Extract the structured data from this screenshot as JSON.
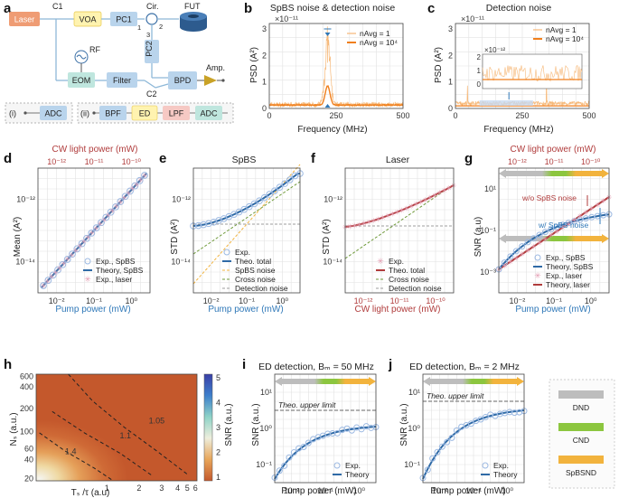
{
  "panels": {
    "a": {
      "label": "a",
      "blocks": [
        "Laser",
        "VOA",
        "PC1",
        "Cir.",
        "FUT",
        "RF",
        "EOM",
        "Filter",
        "PC2",
        "BPD",
        "Amp."
      ],
      "ports": [
        "C1",
        "1",
        "2",
        "3",
        "C2"
      ],
      "inset_i": {
        "label": "(i)",
        "blocks": [
          "ADC"
        ]
      },
      "inset_ii": {
        "label": "(ii)",
        "blocks": [
          "BPF",
          "ED",
          "LPF",
          "ADC"
        ]
      }
    },
    "b": {
      "label": "b"
    },
    "c": {
      "label": "c"
    },
    "d": {
      "label": "d"
    },
    "e": {
      "label": "e"
    },
    "f": {
      "label": "f"
    },
    "g": {
      "label": "g",
      "annotations": [
        "w/o SpBS noise",
        "w/ SpBS noise"
      ]
    },
    "h": {
      "label": "h",
      "contour_labels": [
        "1.05",
        "1.1",
        "1.4"
      ]
    },
    "i": {
      "label": "i",
      "annotation": "Theo. upper limit"
    },
    "j": {
      "label": "j",
      "annotation": "Theo. upper limit"
    },
    "legend_regions": [
      {
        "name": "DND",
        "color": "#bdbdbd"
      },
      {
        "name": "CND",
        "color": "#8cc63f"
      },
      {
        "name": "SpBSND",
        "color": "#f2b33d"
      }
    ]
  },
  "chart_data": [
    {
      "id": "b",
      "type": "line",
      "title": "SpBS noise & detection noise",
      "xlabel": "Frequency (MHz)",
      "ylabel": "PSD (A²)",
      "yexp": "×10⁻¹¹",
      "xlim": [
        0,
        500
      ],
      "ylim": [
        0,
        3.2
      ],
      "xticks": [
        0,
        250,
        500
      ],
      "yticks": [
        0,
        1,
        2,
        3
      ],
      "legend": [
        "nAvg = 1",
        "nAvg = 10⁴"
      ],
      "legend_pos": "top-right",
      "series": [
        {
          "name": "nAvg = 1",
          "color": "#f6b878",
          "peak_center": 218,
          "peak_width": 14,
          "peak_height": 2.6,
          "floor": 0.18
        },
        {
          "name": "nAvg = 10⁴",
          "color": "#f07f1c",
          "peak_center": 218,
          "peak_width": 14,
          "peak_height": 0.72,
          "floor": 0.14
        }
      ]
    },
    {
      "id": "c",
      "type": "line",
      "title": "Detection noise",
      "xlabel": "Frequency (MHz)",
      "ylabel": "PSD (A²)",
      "yexp": "×10⁻¹¹",
      "xlim": [
        0,
        500
      ],
      "ylim": [
        0,
        3.2
      ],
      "xticks": [
        0,
        250,
        500
      ],
      "yticks": [
        0,
        1,
        2,
        3
      ],
      "legend": [
        "nAvg = 1",
        "nAvg = 10⁴"
      ],
      "legend_pos": "top-right",
      "inset": {
        "yexp": "×10⁻¹²",
        "yticks": [
          0,
          1,
          2
        ]
      }
    },
    {
      "id": "d",
      "type": "scatter",
      "xlabel": "Pump power (mW)",
      "ylabel": "Mean (A²)",
      "xlabel_top": "CW light power (mW)",
      "x_log": [
        -2.6,
        0.4
      ],
      "y_log": [
        -14.4,
        -11.3
      ],
      "xticks": [
        "10⁻²",
        "10⁻¹",
        "10⁰"
      ],
      "xticks_top": [
        "10⁻¹²",
        "10⁻¹¹",
        "10⁻¹⁰"
      ],
      "yticks": [
        "10⁻¹⁴",
        "10⁻¹²"
      ],
      "legend": [
        "Exp., SpBS",
        "Theory, SpBS",
        "Exp., laser"
      ],
      "legend_pos": "bottom-right"
    },
    {
      "id": "e",
      "type": "line",
      "title": "SpBS",
      "xlabel": "Pump power (mW)",
      "ylabel": "STD (A²)",
      "xticks": [
        "10⁻²",
        "10⁻¹",
        "10⁰"
      ],
      "yticks": [
        "10⁻¹⁴",
        "10⁻¹²"
      ],
      "legend": [
        "Exp.",
        "Theo. total",
        "SpBS noise",
        "Cross noise",
        "Detection noise"
      ],
      "legend_pos": "bottom-right"
    },
    {
      "id": "f",
      "type": "line",
      "title": "Laser",
      "xlabel": "CW light power (mW)",
      "ylabel": "STD (A²)",
      "xticks": [
        "10⁻¹²",
        "10⁻¹¹",
        "10⁻¹⁰"
      ],
      "yticks": [
        "10⁻¹⁴",
        "10⁻¹²"
      ],
      "legend": [
        "Exp.",
        "Theo. total",
        "Cross noise",
        "Detection noise"
      ],
      "legend_pos": "bottom-right"
    },
    {
      "id": "g",
      "type": "line",
      "xlabel": "Pump power (mW)",
      "ylabel": "SNR (a.u)",
      "xlabel_top": "CW light power (mW)",
      "xticks": [
        "10⁻²",
        "10⁻¹",
        "10⁰"
      ],
      "xticks_top": [
        "10⁻¹²",
        "10⁻¹¹",
        "10⁻¹⁰"
      ],
      "yticks": [
        "10⁻³",
        "10⁻¹",
        "10¹"
      ],
      "legend": [
        "Exp., SpBS",
        "Theory, SpBS",
        "Exp., laser",
        "Theory, laser"
      ],
      "legend_pos": "bottom-right"
    },
    {
      "id": "h",
      "type": "heatmap",
      "xlabel": "Tₛ /τ (a.u)",
      "ylabel": "Nₛ (a.u.)",
      "colorbar_label": "SNR (a.u.)",
      "xticks": [
        "1",
        "2",
        "3",
        "4",
        "5",
        "6"
      ],
      "yticks": [
        "20",
        "40",
        "60",
        "100",
        "200",
        "400",
        "600"
      ],
      "colorbar_ticks": [
        "1",
        "2",
        "3",
        "4",
        "5"
      ]
    },
    {
      "id": "i",
      "type": "line",
      "title": "ED detection, Bₘ = 50 MHz",
      "xlabel": "Pump power (mW)",
      "ylabel": "SNR (a.u.)",
      "xticks": [
        "10⁻²",
        "10⁻¹",
        "10⁰"
      ],
      "yticks": [
        "10⁻¹",
        "10⁰",
        "10¹"
      ],
      "legend": [
        "Exp.",
        "Theory"
      ],
      "legend_pos": "bottom-right"
    },
    {
      "id": "j",
      "type": "line",
      "title": "ED detection, Bₘ = 2 MHz",
      "xlabel": "Pump power (mW)",
      "ylabel": "SNR (a.u.)",
      "xticks": [
        "10⁻²",
        "10⁻¹",
        "10⁰"
      ],
      "yticks": [
        "10⁻¹",
        "10⁰",
        "10¹"
      ],
      "legend": [
        "Exp.",
        "Theory"
      ],
      "legend_pos": "bottom-right"
    }
  ]
}
